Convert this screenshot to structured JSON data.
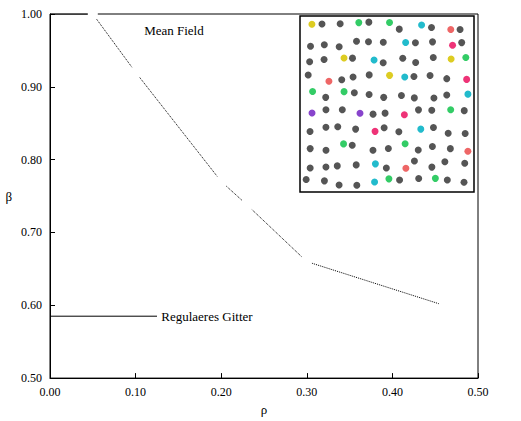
{
  "chart_data": {
    "type": "line",
    "x_label": "ρ",
    "y_label": "β",
    "xlim": [
      0,
      0.5
    ],
    "ylim": [
      0.5,
      1.0
    ],
    "xticks": [
      {
        "value": 0,
        "label": "0.00"
      },
      {
        "value": 0.1,
        "label": "0.10"
      },
      {
        "value": 0.2,
        "label": "0.20"
      },
      {
        "value": 0.3,
        "label": "0.30"
      },
      {
        "value": 0.4,
        "label": "0.40"
      },
      {
        "value": 0.5,
        "label": "0.50"
      }
    ],
    "yticks": [
      {
        "value": 0.5,
        "label": "0.50"
      },
      {
        "value": 0.6,
        "label": "0.60"
      },
      {
        "value": 0.7,
        "label": "0.70"
      },
      {
        "value": 0.8,
        "label": "0.80"
      },
      {
        "value": 0.9,
        "label": "0.90"
      },
      {
        "value": 1.0,
        "label": "1.00"
      }
    ],
    "grid": false,
    "x": [
      0.05,
      0.1,
      0.2,
      0.23,
      0.3,
      0.46
    ],
    "values": [
      1.0,
      0.92,
      0.77,
      0.738,
      0.66,
      0.6
    ],
    "color": "#000000",
    "marker": "square",
    "line_style": "dotted",
    "annotations": [
      {
        "text": "Mean Field",
        "x": 0.11,
        "y": 0.978,
        "line_x": [
          0,
          0.05
        ],
        "line_y": 1.0
      },
      {
        "text": "Regulaeres Gitter",
        "x": 0.13,
        "y": 0.585,
        "line_x": [
          0,
          0.125
        ],
        "line_y": 0.585
      }
    ]
  }
}
